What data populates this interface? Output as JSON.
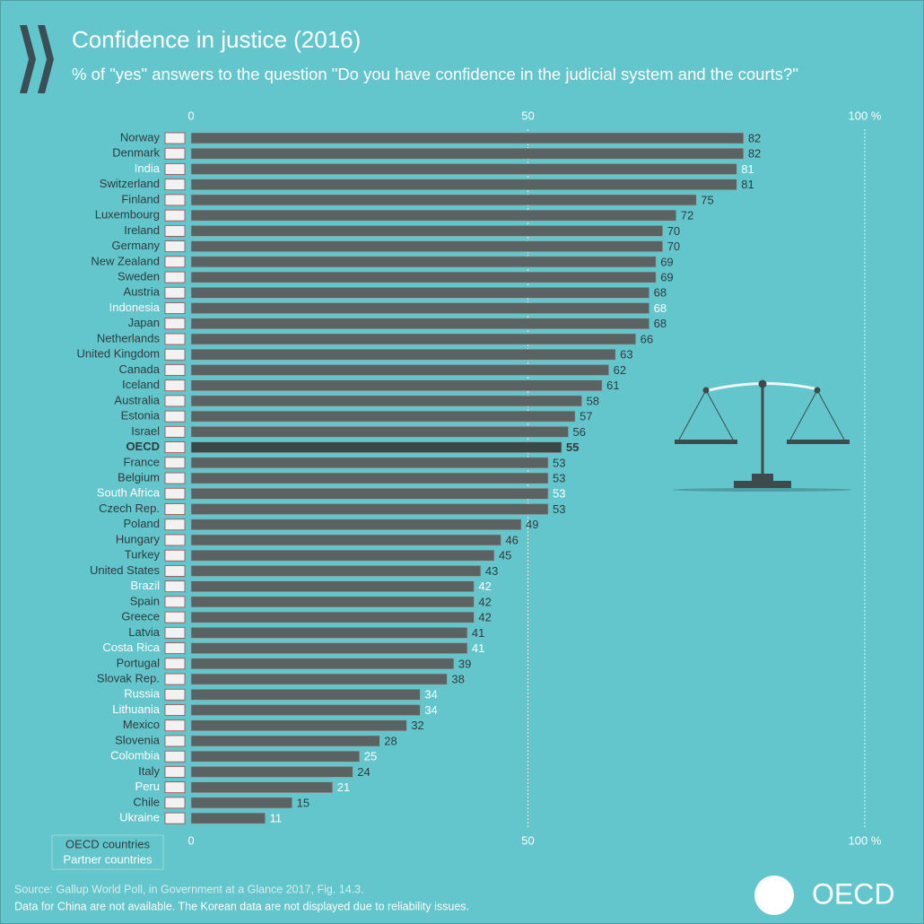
{
  "chart_data": {
    "type": "hbar",
    "title": "Confidence in justice (2016)",
    "subtitle": "% of \"yes\" answers to the question \"Do you have confidence in the judicial system and the courts?\"",
    "categories": [
      "Norway",
      "Denmark",
      "India",
      "Switzerland",
      "Finland",
      "Luxembourg",
      "Ireland",
      "Germany",
      "New Zealand",
      "Sweden",
      "Austria",
      "Indonesia",
      "Japan",
      "Netherlands",
      "United Kingdom",
      "Canada",
      "Iceland",
      "Australia",
      "Estonia",
      "Israel",
      "OECD",
      "France",
      "Belgium",
      "South Africa",
      "Czech Rep.",
      "Poland",
      "Hungary",
      "Turkey",
      "United States",
      "Brazil",
      "Spain",
      "Greece",
      "Latvia",
      "Costa Rica",
      "Portugal",
      "Slovak Rep.",
      "Russia",
      "Lithuania",
      "Mexico",
      "Slovenia",
      "Colombia",
      "Italy",
      "Peru",
      "Chile",
      "Ukraine"
    ],
    "values": [
      82,
      82,
      81,
      81,
      75,
      72,
      70,
      70,
      69,
      69,
      68,
      68,
      68,
      66,
      63,
      62,
      61,
      58,
      57,
      56,
      55,
      53,
      53,
      53,
      53,
      49,
      46,
      45,
      43,
      42,
      42,
      42,
      41,
      41,
      39,
      38,
      34,
      34,
      32,
      28,
      25,
      24,
      21,
      15,
      11
    ],
    "category_groups": [
      0,
      0,
      1,
      0,
      0,
      0,
      0,
      0,
      0,
      0,
      0,
      1,
      0,
      0,
      0,
      0,
      0,
      0,
      0,
      0,
      0,
      0,
      0,
      1,
      0,
      0,
      0,
      0,
      0,
      1,
      0,
      0,
      0,
      1,
      0,
      0,
      1,
      1,
      0,
      0,
      1,
      0,
      1,
      0,
      1
    ],
    "highlight_index": 20,
    "groups": [
      {
        "name": "OECD countries",
        "color": "#2f3b3d"
      },
      {
        "name": "Partner countries",
        "color": "#ffffff"
      }
    ],
    "color": "#5b6262",
    "highlight_color": "#3b4848",
    "xlim": [
      0,
      100
    ],
    "xticks": [
      0,
      50,
      {
        "value": 100,
        "label": "100 %"
      }
    ],
    "grid": true,
    "source": "Source: Gallup World Poll, in Government at a Glance 2017, Fig. 14.3.",
    "note": "Data for China are not available. The Korean data are not displayed due to reliability issues.",
    "logo": "OECD"
  }
}
